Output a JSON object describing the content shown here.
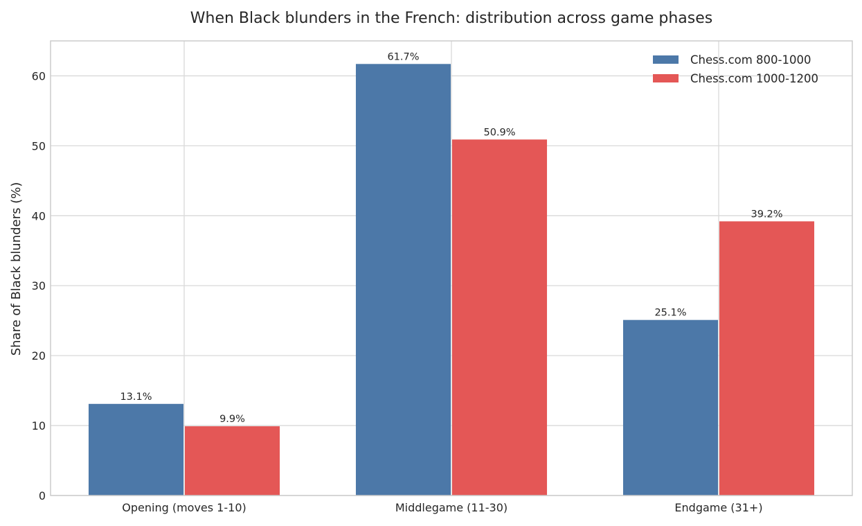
{
  "chart_data": {
    "type": "bar",
    "title": "When Black blunders in the French: distribution across game phases",
    "xlabel": "",
    "ylabel": "Share of Black blunders (%)",
    "categories": [
      "Opening (moves 1-10)",
      "Middlegame (11-30)",
      "Endgame (31+)"
    ],
    "series": [
      {
        "name": "Chess.com 800-1000",
        "values": [
          13.1,
          61.7,
          25.1
        ],
        "labels": [
          "13.1%",
          "61.7%",
          "25.1%"
        ],
        "color": "#4c78a8"
      },
      {
        "name": "Chess.com 1000-1200",
        "values": [
          9.9,
          50.9,
          39.2
        ],
        "labels": [
          "9.9%",
          "50.9%",
          "39.2%"
        ],
        "color": "#e45756"
      }
    ],
    "ylim": [
      0,
      65
    ],
    "yticks": [
      0,
      10,
      20,
      30,
      40,
      50,
      60
    ],
    "grid": true,
    "legend_position": "top-right"
  }
}
